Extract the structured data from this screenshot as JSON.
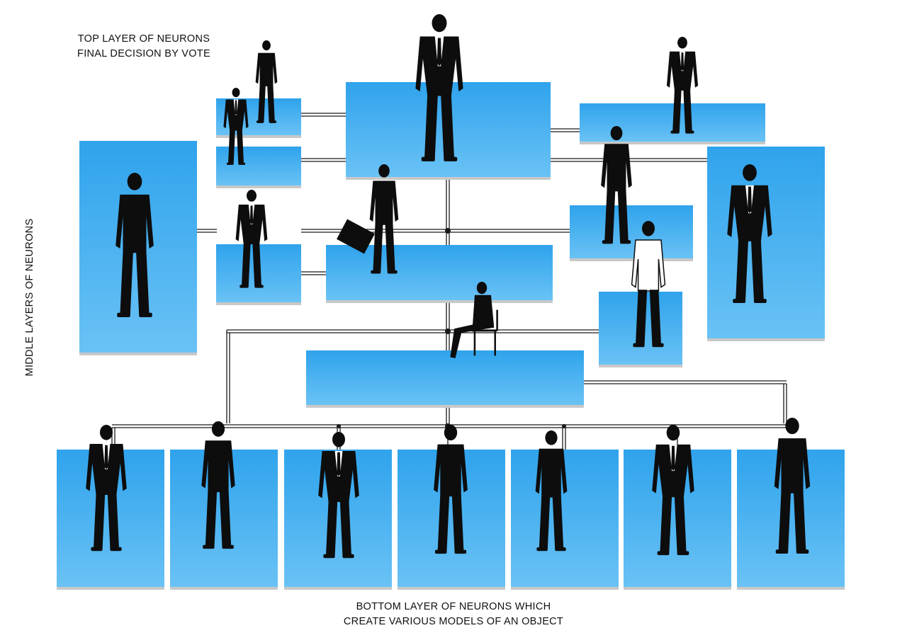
{
  "labels": {
    "top_line1": "TOP LAYER OF NEURONS",
    "top_line2": "FINAL DECISION BY VOTE",
    "middle": "MIDDLE LAYERS OF NEURONS",
    "bottom_line1": "BOTTOM LAYER OF NEURONS WHICH",
    "bottom_line2": "CREATE VARIOUS MODELS OF AN OBJECT"
  },
  "colors": {
    "panel_top": "#2fa3ec",
    "panel_bottom": "#6ac2f5",
    "panel_shadow": "#c8c8c8",
    "connector": "#1a1a1a",
    "silhouette": "#0d0d0d",
    "shirt": "#ffffff",
    "text": "#111111"
  },
  "figure_icons": [
    "person-silhouette-icon",
    "briefcase-icon",
    "chair-icon"
  ]
}
